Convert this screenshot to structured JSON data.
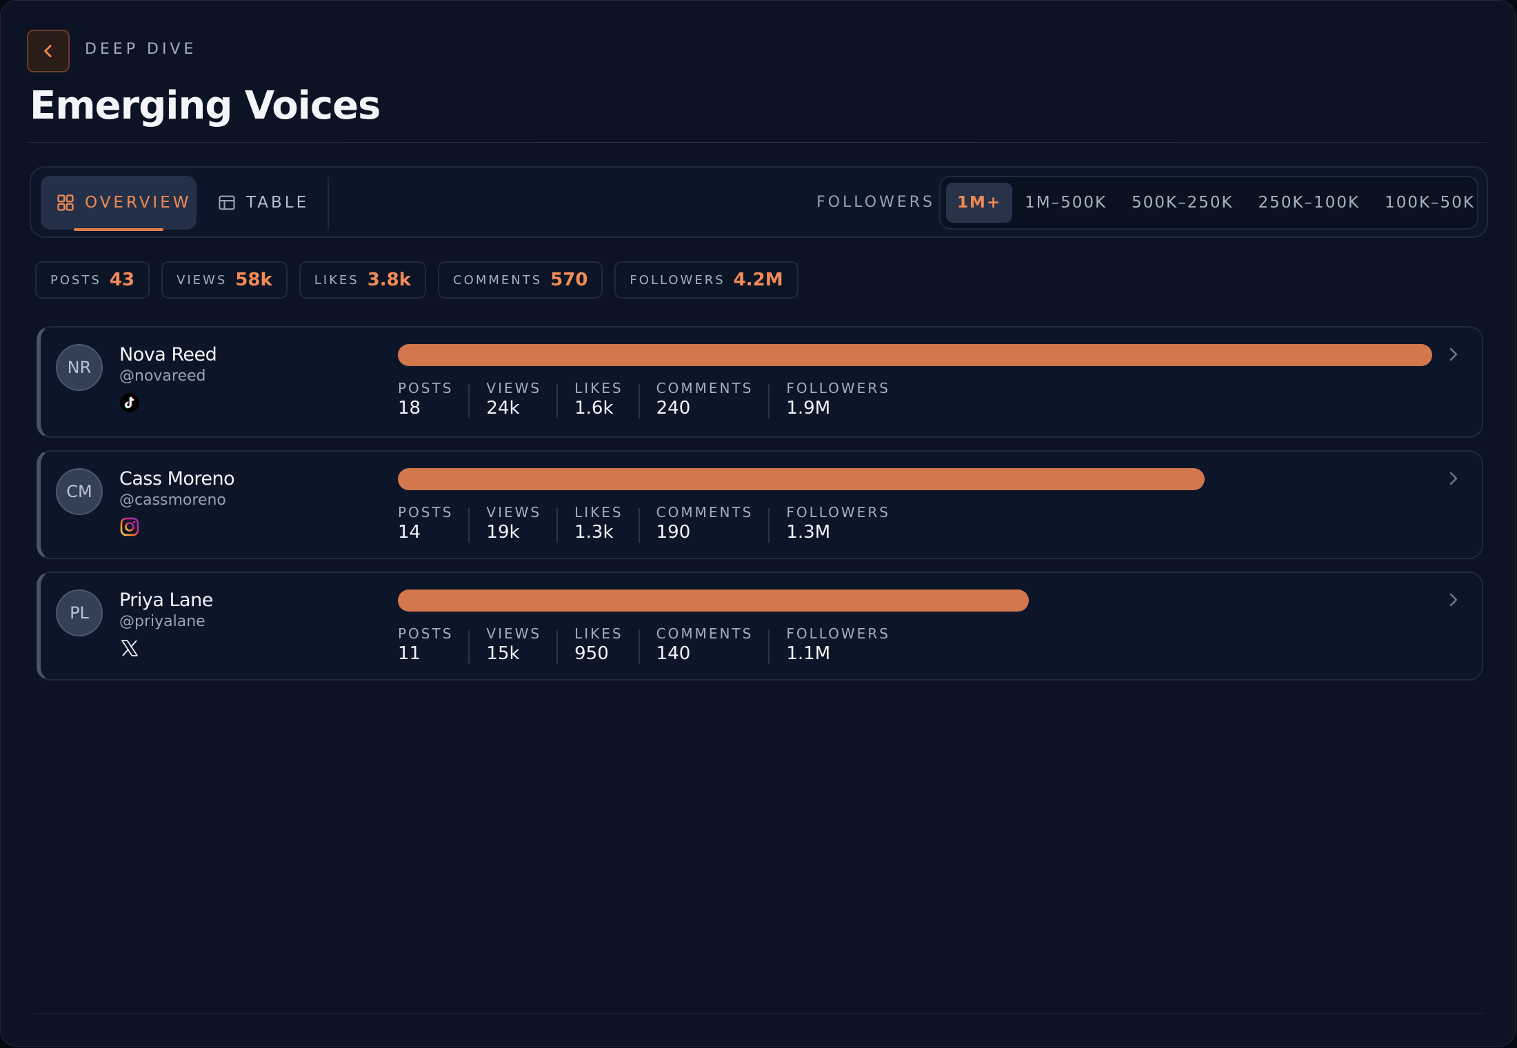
{
  "header": {
    "back_icon": "chevron-left-icon",
    "eyebrow": "DEEP DIVE",
    "title": "Emerging Voices"
  },
  "toolbar": {
    "views": [
      {
        "label": "OVERVIEW",
        "icon": "grid-icon",
        "active": true
      },
      {
        "label": "TABLE",
        "icon": "table-icon",
        "active": false
      }
    ],
    "filter_label": "FOLLOWERS",
    "filters": [
      {
        "label": "1M+",
        "active": true
      },
      {
        "label": "1M–500K",
        "active": false
      },
      {
        "label": "500K–250K",
        "active": false
      },
      {
        "label": "250K–100K",
        "active": false
      },
      {
        "label": "100K–50K",
        "active": false
      }
    ]
  },
  "summary": [
    {
      "label": "POSTS",
      "value": "43"
    },
    {
      "label": "VIEWS",
      "value": "58k"
    },
    {
      "label": "LIKES",
      "value": "3.8k"
    },
    {
      "label": "COMMENTS",
      "value": "570"
    },
    {
      "label": "FOLLOWERS",
      "value": "4.2M"
    }
  ],
  "creators": [
    {
      "initials": "NR",
      "name": "Nova Reed",
      "handle": "@novareed",
      "platform": "tiktok-icon",
      "bar_fraction": 1.0,
      "metrics": [
        {
          "label": "POSTS",
          "value": "18"
        },
        {
          "label": "VIEWS",
          "value": "24k"
        },
        {
          "label": "LIKES",
          "value": "1.6k"
        },
        {
          "label": "COMMENTS",
          "value": "240"
        },
        {
          "label": "FOLLOWERS",
          "value": "1.9M"
        }
      ]
    },
    {
      "initials": "CM",
      "name": "Cass Moreno",
      "handle": "@cassmoreno",
      "platform": "instagram-icon",
      "bar_fraction": 0.78,
      "metrics": [
        {
          "label": "POSTS",
          "value": "14"
        },
        {
          "label": "VIEWS",
          "value": "19k"
        },
        {
          "label": "LIKES",
          "value": "1.3k"
        },
        {
          "label": "COMMENTS",
          "value": "190"
        },
        {
          "label": "FOLLOWERS",
          "value": "1.3M"
        }
      ]
    },
    {
      "initials": "PL",
      "name": "Priya Lane",
      "handle": "@priyalane",
      "platform": "x-icon",
      "bar_fraction": 0.61,
      "metrics": [
        {
          "label": "POSTS",
          "value": "11"
        },
        {
          "label": "VIEWS",
          "value": "15k"
        },
        {
          "label": "LIKES",
          "value": "950"
        },
        {
          "label": "COMMENTS",
          "value": "140"
        },
        {
          "label": "FOLLOWERS",
          "value": "1.1M"
        }
      ]
    }
  ],
  "colors": {
    "accent": "#f08a54",
    "bar": "#d3774c",
    "background": "#0b1324"
  }
}
